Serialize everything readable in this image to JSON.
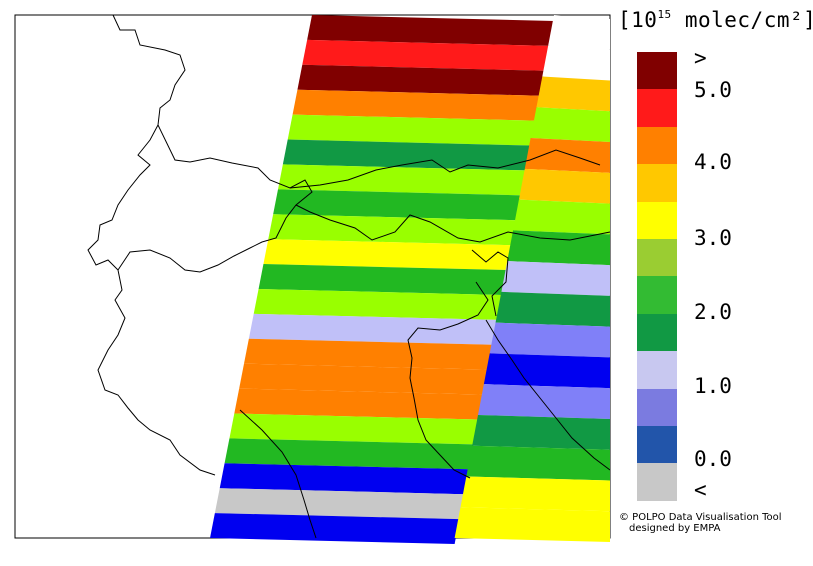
{
  "legend": {
    "unit_prefix": "[10",
    "unit_exponent": "15",
    "unit_suffix": " molec/cm²]",
    "labels": [
      ">",
      "5.0",
      "4.0",
      "3.0",
      "2.0",
      "1.0",
      "0.0",
      "<"
    ],
    "bins": [
      {
        "color": "#800000"
      },
      {
        "color": "#ff1a1a"
      },
      {
        "color": "#ff8000"
      },
      {
        "color": "#ffc800"
      },
      {
        "color": "#ffff00"
      },
      {
        "color": "#9acd32"
      },
      {
        "color": "#33bb33"
      },
      {
        "color": "#119944"
      },
      {
        "color": "#c8c8f0"
      },
      {
        "color": "#7b7be0"
      },
      {
        "color": "#2255aa"
      },
      {
        "color": "#c8c8c8"
      }
    ]
  },
  "credit": {
    "line1": "© POLPO Data Visualisation Tool",
    "line2": "designed by EMPA"
  },
  "swath": {
    "colors": {
      "darkred": "#800000",
      "red": "#ff1a1a",
      "orange": "#ff8000",
      "gold": "#ffc800",
      "yellow": "#ffff00",
      "lime": "#99ff00",
      "green": "#22b822",
      "dkgreen": "#119944",
      "lavender": "#c0c0f8",
      "periwinkle": "#8080f8",
      "blue": "#0000f0",
      "gray": "#c8c8c8"
    },
    "west_column": [
      "darkred",
      "red",
      "darkred",
      "orange",
      "lime",
      "dkgreen",
      "lime",
      "green",
      "lime",
      "yellow",
      "green",
      "lime",
      "lavender",
      "orange",
      "orange",
      "orange",
      "lime",
      "green",
      "blue",
      "gray",
      "blue"
    ],
    "east_column": [
      "white",
      "white",
      "gold",
      "lime",
      "orange",
      "gold",
      "lime",
      "green",
      "lavender",
      "dkgreen",
      "periwinkle",
      "blue",
      "periwinkle",
      "dkgreen",
      "green",
      "yellow",
      "yellow"
    ]
  }
}
